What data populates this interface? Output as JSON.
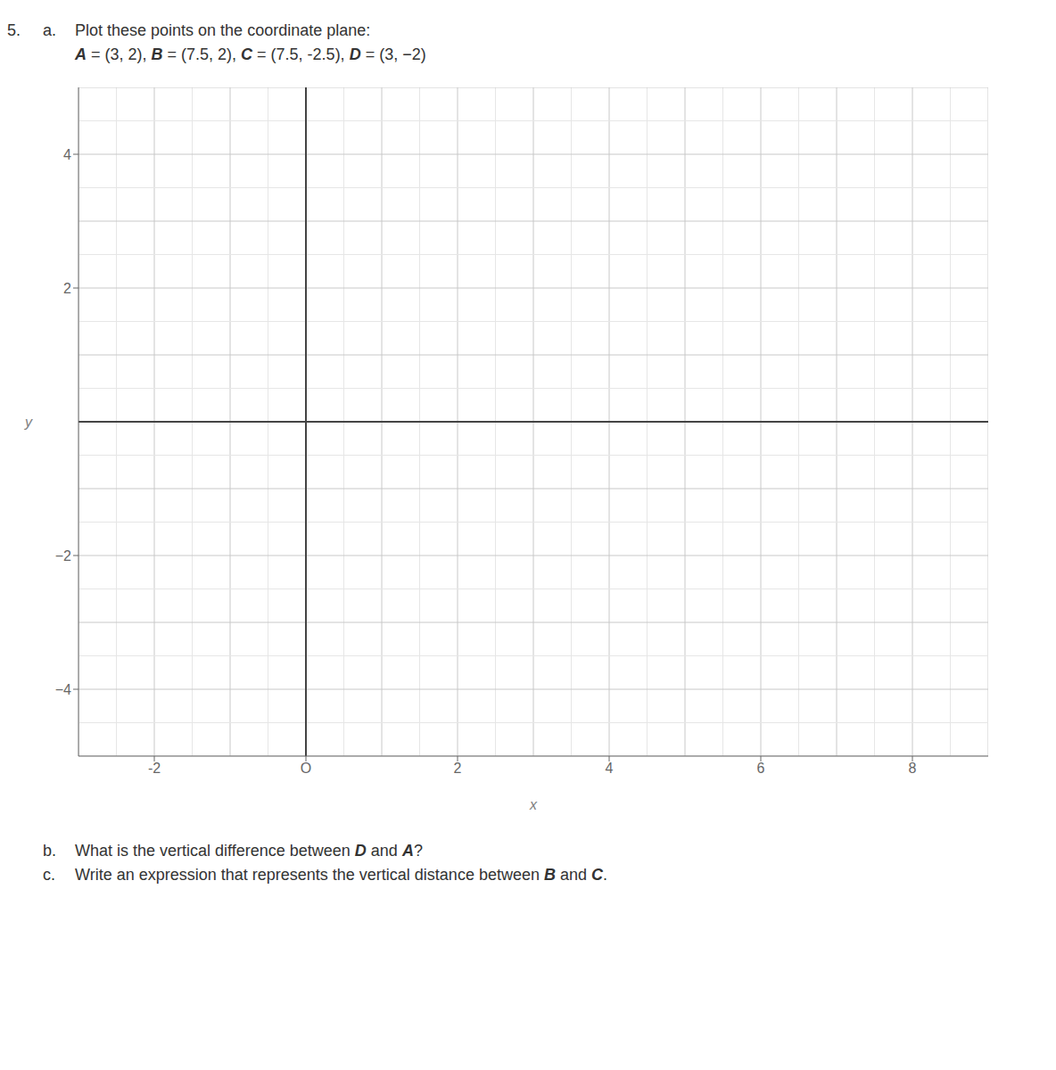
{
  "chart_data": {
    "type": "scatter",
    "annotations_top": [
      {
        "number": "5.",
        "label": "a.",
        "parts": [
          [
            "Plot these points on the coordinate plane:",
            false
          ]
        ]
      },
      {
        "parts": [
          [
            "A",
            true
          ],
          [
            " = (3, 2), ",
            false
          ],
          [
            "B",
            true
          ],
          [
            " = (7.5, 2), ",
            false
          ],
          [
            "C",
            true
          ],
          [
            " = (7.5, -2.5), ",
            false
          ],
          [
            "D",
            true
          ],
          [
            " = (3, −2)",
            false
          ]
        ]
      }
    ],
    "annotations_bottom": [
      {
        "label": "b.",
        "parts": [
          [
            "What is the vertical difference between ",
            false
          ],
          [
            "D",
            true
          ],
          [
            " and ",
            false
          ],
          [
            "A",
            true
          ],
          [
            "?",
            false
          ]
        ]
      },
      {
        "label": "c.",
        "parts": [
          [
            "Write an expression that represents the vertical distance between ",
            false
          ],
          [
            "B",
            true
          ],
          [
            " and ",
            false
          ],
          [
            "C",
            true
          ],
          [
            ".",
            false
          ]
        ]
      }
    ],
    "x_label": "x",
    "y_label": "y",
    "xlim": [
      -3,
      9
    ],
    "ylim": [
      -5,
      5
    ],
    "xticks": [
      -2,
      {
        "value": 0,
        "label": "O"
      },
      2,
      4,
      6,
      8
    ],
    "yticks": [
      {
        "value": -4,
        "label": "−4"
      },
      {
        "value": -2,
        "label": "−2"
      },
      2,
      4
    ],
    "grid": true
  }
}
